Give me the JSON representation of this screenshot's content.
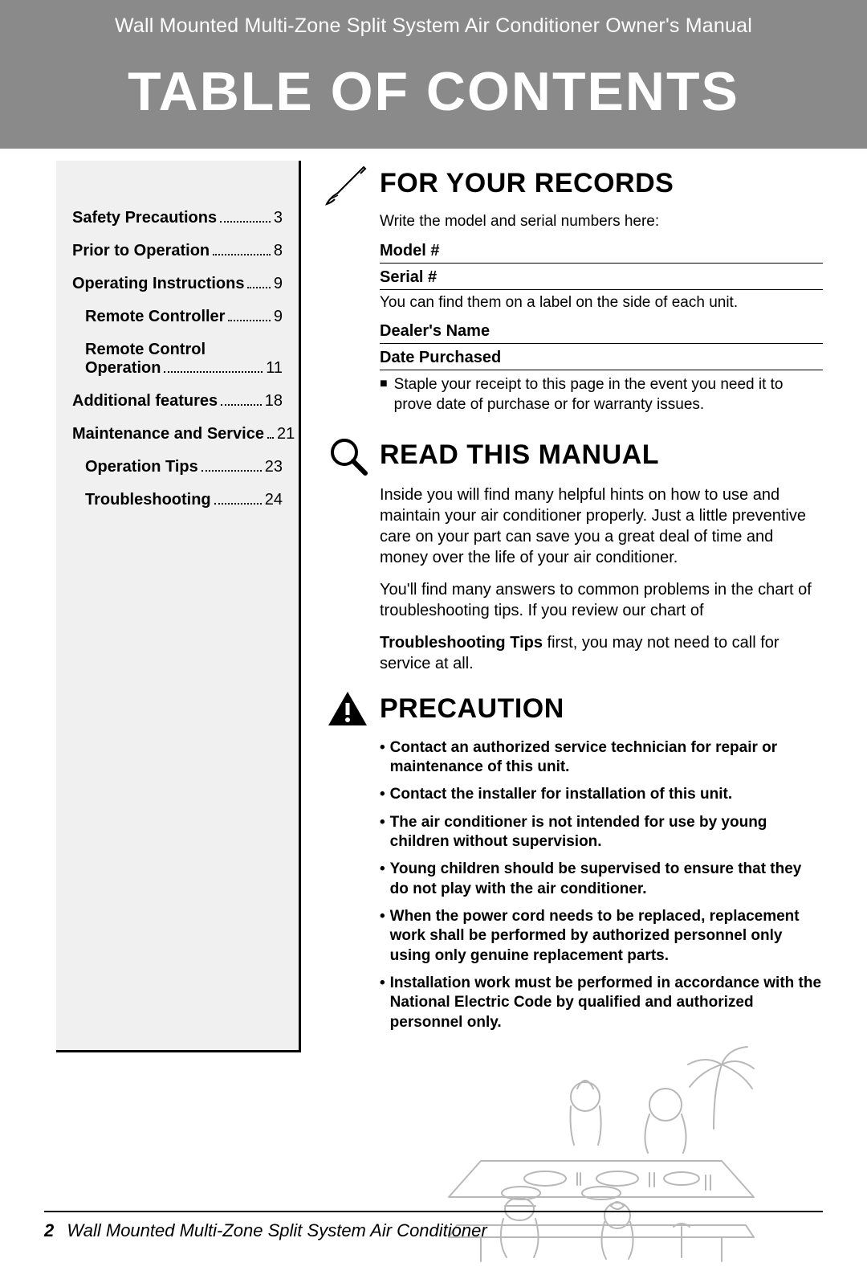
{
  "header": {
    "subtitle": "Wall Mounted Multi-Zone Split System Air Conditioner Owner's Manual",
    "title": "TABLE OF CONTENTS"
  },
  "toc": [
    {
      "label": "Safety Precautions",
      "page": "3",
      "indent": 0
    },
    {
      "label": "Prior to Operation",
      "page": "8",
      "indent": 0
    },
    {
      "label": "Operating Instructions",
      "page": "9",
      "indent": 0
    },
    {
      "label": "Remote Controller",
      "page": "9",
      "indent": 1
    },
    {
      "label": "Remote Control Operation",
      "page": "11",
      "indent": 1,
      "multiline": true,
      "line1": "Remote Control",
      "line2": "Operation"
    },
    {
      "label": "Additional features",
      "page": "18",
      "indent": 0
    },
    {
      "label": "Maintenance and Service",
      "page": "21",
      "indent": 0
    },
    {
      "label": "Operation Tips",
      "page": "23",
      "indent": 1
    },
    {
      "label": "Troubleshooting",
      "page": "24",
      "indent": 1
    }
  ],
  "records": {
    "title": "FOR YOUR RECORDS",
    "intro": "Write the model and serial numbers here:",
    "model_label": "Model #",
    "serial_label": "Serial #",
    "find_note": "You can find them on a label on the side of each unit.",
    "dealer_label": "Dealer's Name",
    "date_label": "Date Purchased",
    "staple_note": "Staple your receipt to this page in the event you need it to prove date of purchase or for warranty issues."
  },
  "read": {
    "title": "READ THIS MANUAL",
    "p1": "Inside you will find many helpful hints on how to use and maintain your air conditioner properly. Just a little preventive care on your part can save you a great deal of time and money over the life of your air conditioner.",
    "p2": "You'll find many answers to common problems in the chart of troubleshooting tips. If you review our chart of",
    "p3_bold": "Troubleshooting Tips",
    "p3_rest": " first, you may not need to call for service at all."
  },
  "precaution": {
    "title": "PRECAUTION",
    "items": [
      "Contact an authorized service technician for repair or maintenance of this unit.",
      "Contact the installer for installation of this unit.",
      "The air conditioner is not intended for use by young children without supervision.",
      "Young children should be supervised to ensure that they do not play with the air conditioner.",
      "When the power cord needs to be replaced, replacement work shall be performed by authorized personnel only using only genuine replacement parts.",
      "Installation work must be performed in accordance with the National Electric Code by qualified and authorized personnel only."
    ]
  },
  "footer": {
    "page": "2",
    "text": "Wall Mounted Multi-Zone Split System Air Conditioner"
  },
  "colors": {
    "header_bg": "#8a8a8a",
    "toc_bg": "#f0f0f0",
    "illust_stroke": "#b8b8b8"
  }
}
